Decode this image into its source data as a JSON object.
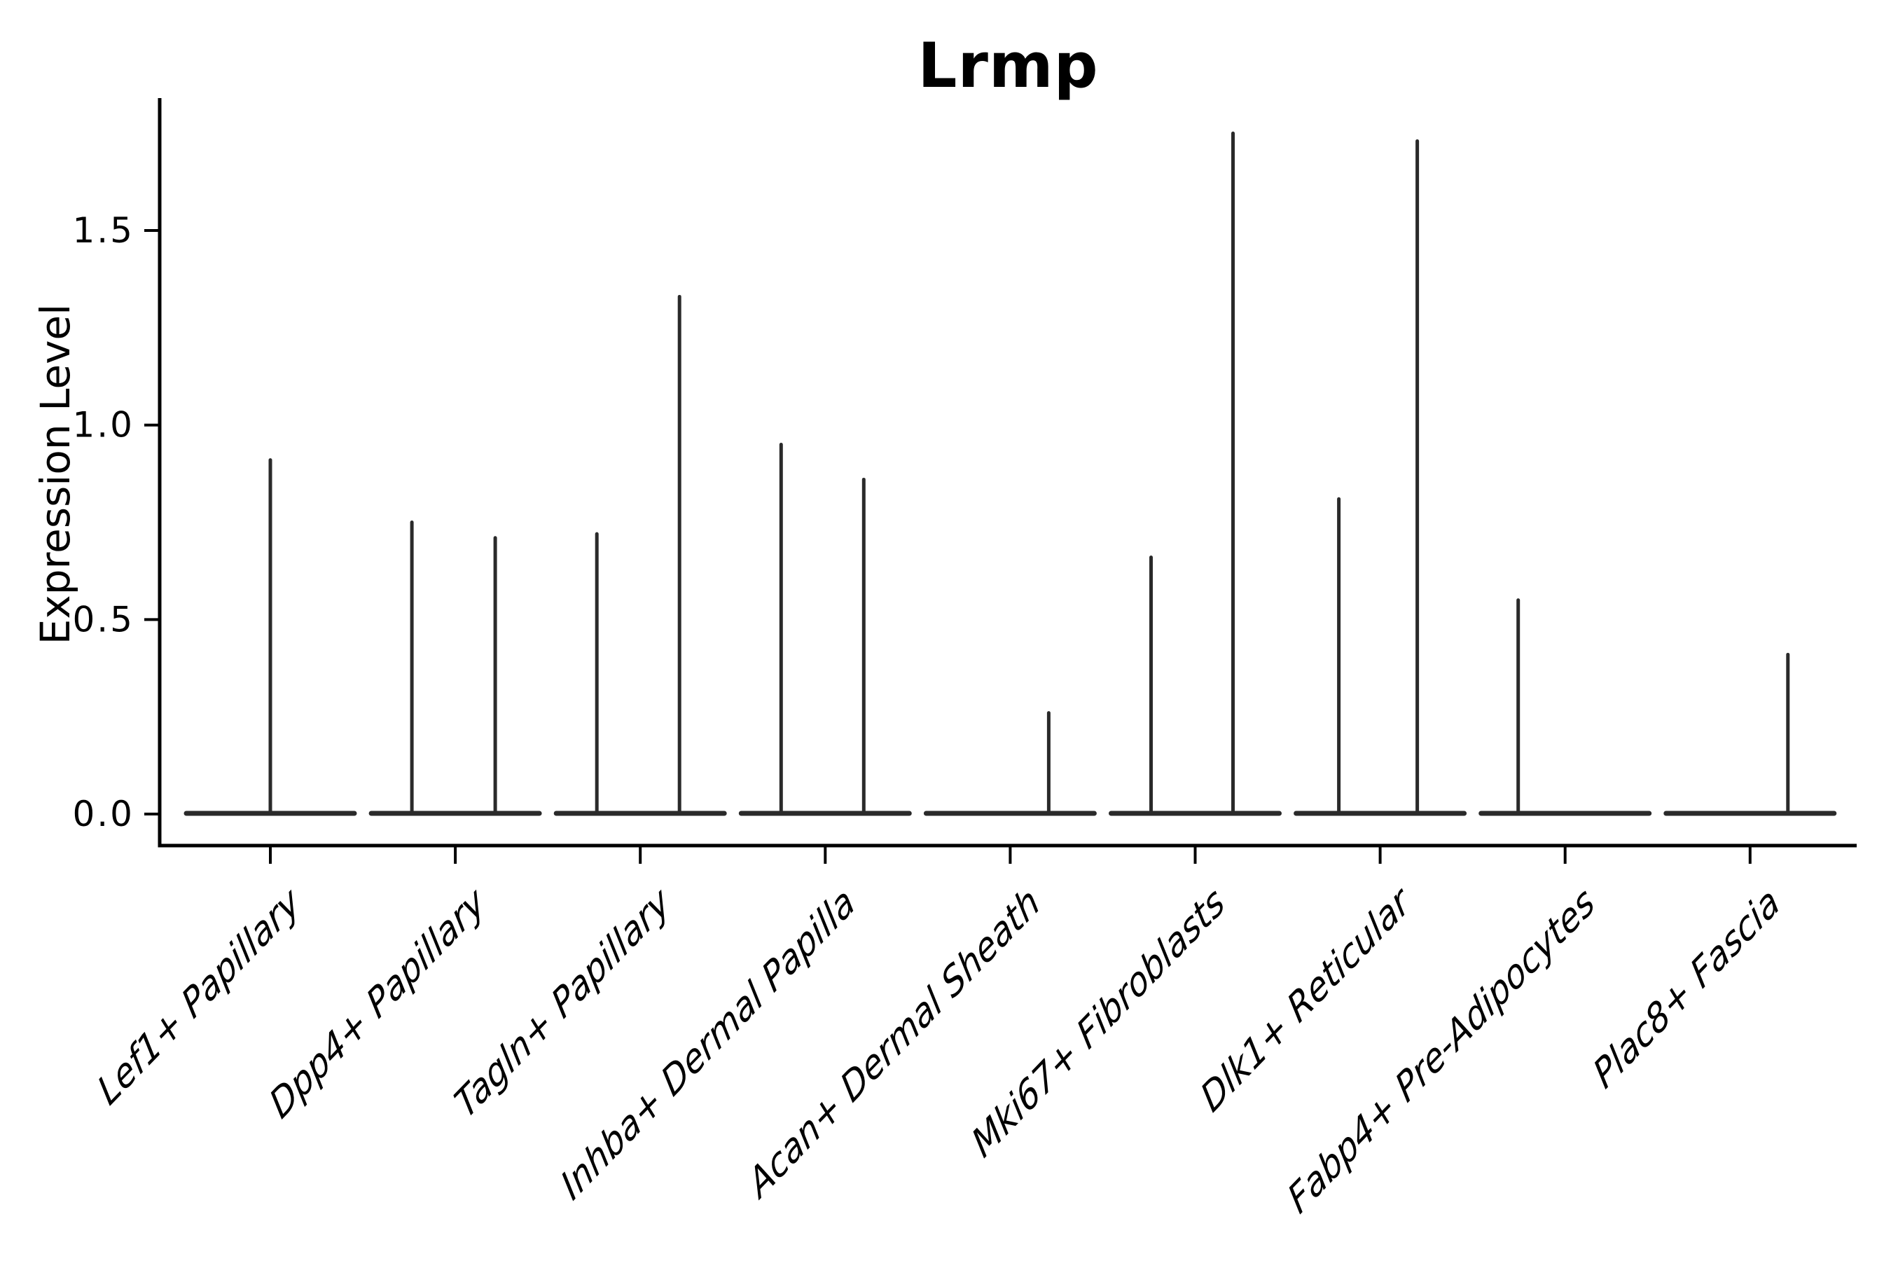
{
  "title": "Lrmp",
  "colors": {
    "ink": "#000000",
    "violin_stroke": "#2a2a2a",
    "background": "#ffffff"
  },
  "chart_data": {
    "type": "violin",
    "title": "Lrmp",
    "xlabel": "",
    "ylabel": "Expression Level",
    "ylim": [
      0,
      1.84
    ],
    "grid": false,
    "legend": "none",
    "yticks": [
      {
        "label": "0.0",
        "value": 0.0
      },
      {
        "label": "0.5",
        "value": 0.5
      },
      {
        "label": "1.0",
        "value": 1.0
      },
      {
        "label": "1.5",
        "value": 1.5
      }
    ],
    "categories": [
      "Lef1+ Papillary",
      "Dpp4+ Papillary",
      "Tagln+ Papillary",
      "Inhba+ Dermal Papilla",
      "Acan+ Dermal Sheath",
      "Mki67+ Fibroblasts",
      "Dlk1+ Reticular",
      "Fabp4+ Pre-Adipocytes",
      "Plac8+ Fascia"
    ],
    "violins": [
      {
        "category": "Lef1+ Papillary",
        "base_value": 0.0,
        "max_expression": 0.91,
        "spikes": [
          {
            "dx": 0,
            "value": 0.91
          }
        ]
      },
      {
        "category": "Dpp4+ Papillary",
        "base_value": 0.0,
        "max_expression": 0.75,
        "spikes": [
          {
            "dx": -62,
            "value": 0.75
          },
          {
            "dx": 57,
            "value": 0.71
          }
        ]
      },
      {
        "category": "Tagln+ Papillary",
        "base_value": 0.0,
        "max_expression": 1.33,
        "spikes": [
          {
            "dx": -62,
            "value": 0.72
          },
          {
            "dx": 56,
            "value": 1.33
          }
        ]
      },
      {
        "category": "Inhba+ Dermal Papilla",
        "base_value": 0.0,
        "max_expression": 0.95,
        "spikes": [
          {
            "dx": -63,
            "value": 0.95
          },
          {
            "dx": 55,
            "value": 0.86
          }
        ]
      },
      {
        "category": "Acan+ Dermal Sheath",
        "base_value": 0.0,
        "max_expression": 0.26,
        "spikes": [
          {
            "dx": 55,
            "value": 0.26
          }
        ]
      },
      {
        "category": "Mki67+ Fibroblasts",
        "base_value": 0.0,
        "max_expression": 1.75,
        "spikes": [
          {
            "dx": -63,
            "value": 0.66
          },
          {
            "dx": 54,
            "value": 1.75
          }
        ]
      },
      {
        "category": "Dlk1+ Reticular",
        "base_value": 0.0,
        "max_expression": 1.73,
        "spikes": [
          {
            "dx": -59,
            "value": 0.81
          },
          {
            "dx": 53,
            "value": 1.73
          }
        ]
      },
      {
        "category": "Fabp4+ Pre-Adipocytes",
        "base_value": 0.0,
        "max_expression": 0.55,
        "spikes": [
          {
            "dx": -67,
            "value": 0.55
          }
        ]
      },
      {
        "category": "Plac8+ Fascia",
        "base_value": 0.0,
        "max_expression": 0.41,
        "spikes": [
          {
            "dx": 54,
            "value": 0.41
          }
        ]
      }
    ]
  }
}
